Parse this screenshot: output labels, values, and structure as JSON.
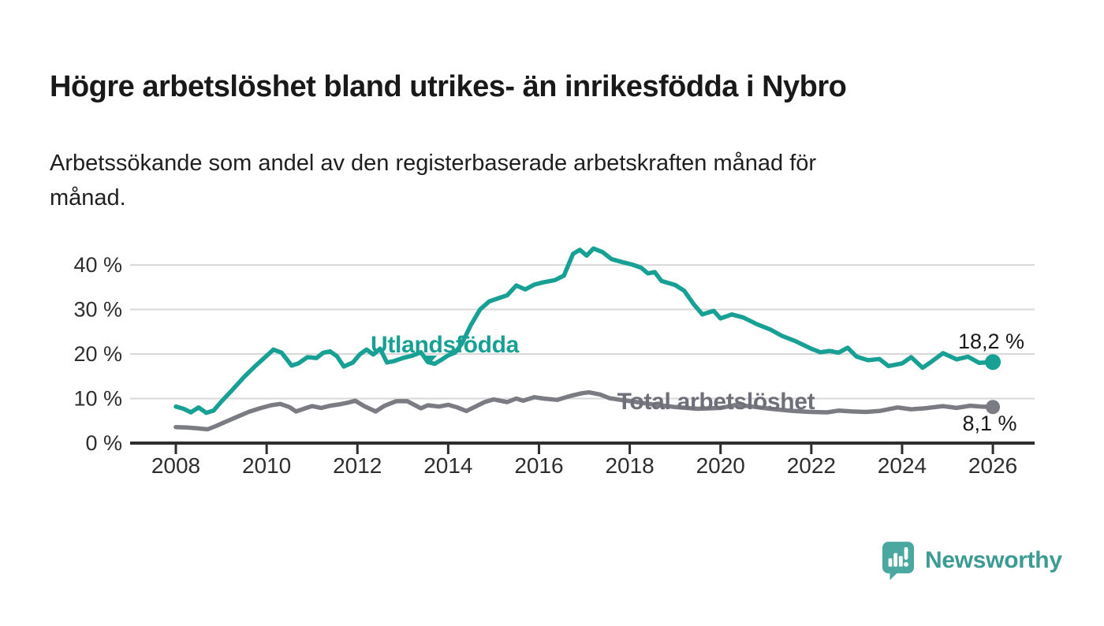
{
  "header": {
    "title": "Högre arbetslöshet bland utrikes- än inrikesfödda i Nybro",
    "subtitle": "Arbetssökande som andel av den registerbaserade arbetskraften månad för\nmånad."
  },
  "chart_data": {
    "type": "line",
    "title": "Högre arbetslöshet bland utrikes- än inrikesfödda i Nybro",
    "subtitle": "Arbetssökande som andel av den registerbaserade arbetskraften månad för månad.",
    "unit": "%",
    "grid": "horizontal",
    "x_axis": {
      "ticks": [
        2008,
        2010,
        2012,
        2014,
        2016,
        2018,
        2020,
        2022,
        2024,
        2026
      ],
      "tick_labels": [
        "2008",
        "2010",
        "2012",
        "2014",
        "2016",
        "2018",
        "2020",
        "2022",
        "2024",
        "2026"
      ],
      "range": [
        2007,
        2026.9
      ]
    },
    "y_axis": {
      "tick_values": [
        0,
        10,
        20,
        30,
        40
      ],
      "tick_labels": [
        "0 %",
        "10 %",
        "20 %",
        "30 %",
        "40 %"
      ],
      "range": [
        0,
        45.5
      ]
    },
    "colors": {
      "axis": "#2E2E2E",
      "gridline": "#D8D8D8",
      "background": "#FFFFFF"
    },
    "series": [
      {
        "name": "Utlandsfödda",
        "color": "#18A094",
        "end_value": 18.2,
        "end_label": "18,2 %",
        "points": [
          [
            2008.0,
            8.2
          ],
          [
            2008.17,
            7.7
          ],
          [
            2008.33,
            6.9
          ],
          [
            2008.5,
            8.0
          ],
          [
            2008.67,
            6.8
          ],
          [
            2008.83,
            7.3
          ],
          [
            2009.0,
            9.3
          ],
          [
            2009.25,
            12.0
          ],
          [
            2009.5,
            14.8
          ],
          [
            2009.75,
            17.3
          ],
          [
            2010.0,
            19.6
          ],
          [
            2010.15,
            21.0
          ],
          [
            2010.33,
            20.3
          ],
          [
            2010.55,
            17.4
          ],
          [
            2010.7,
            17.9
          ],
          [
            2010.9,
            19.3
          ],
          [
            2011.1,
            19.1
          ],
          [
            2011.25,
            20.3
          ],
          [
            2011.4,
            20.6
          ],
          [
            2011.55,
            19.5
          ],
          [
            2011.7,
            17.2
          ],
          [
            2011.9,
            18.1
          ],
          [
            2012.05,
            19.9
          ],
          [
            2012.2,
            21.0
          ],
          [
            2012.35,
            19.9
          ],
          [
            2012.5,
            21.2
          ],
          [
            2012.65,
            18.1
          ],
          [
            2012.8,
            18.4
          ],
          [
            2013.0,
            19.1
          ],
          [
            2013.2,
            19.6
          ],
          [
            2013.4,
            20.4
          ],
          [
            2013.55,
            18.2
          ],
          [
            2013.7,
            17.8
          ],
          [
            2013.85,
            18.7
          ],
          [
            2014.0,
            19.7
          ],
          [
            2014.15,
            20.3
          ],
          [
            2014.3,
            22.3
          ],
          [
            2014.5,
            26.5
          ],
          [
            2014.7,
            30.0
          ],
          [
            2014.9,
            31.8
          ],
          [
            2015.1,
            32.5
          ],
          [
            2015.3,
            33.2
          ],
          [
            2015.5,
            35.4
          ],
          [
            2015.7,
            34.5
          ],
          [
            2015.9,
            35.6
          ],
          [
            2016.1,
            36.1
          ],
          [
            2016.35,
            36.6
          ],
          [
            2016.55,
            37.6
          ],
          [
            2016.75,
            42.5
          ],
          [
            2016.9,
            43.4
          ],
          [
            2017.05,
            42.1
          ],
          [
            2017.2,
            43.7
          ],
          [
            2017.4,
            42.9
          ],
          [
            2017.6,
            41.3
          ],
          [
            2017.85,
            40.6
          ],
          [
            2018.05,
            40.1
          ],
          [
            2018.25,
            39.4
          ],
          [
            2018.4,
            38.1
          ],
          [
            2018.55,
            38.4
          ],
          [
            2018.7,
            36.4
          ],
          [
            2019.0,
            35.5
          ],
          [
            2019.2,
            34.2
          ],
          [
            2019.4,
            31.3
          ],
          [
            2019.6,
            28.9
          ],
          [
            2019.85,
            29.7
          ],
          [
            2020.0,
            28.0
          ],
          [
            2020.25,
            28.9
          ],
          [
            2020.5,
            28.2
          ],
          [
            2020.8,
            26.7
          ],
          [
            2021.1,
            25.5
          ],
          [
            2021.35,
            24.1
          ],
          [
            2021.65,
            22.9
          ],
          [
            2022.0,
            21.2
          ],
          [
            2022.2,
            20.4
          ],
          [
            2022.4,
            20.7
          ],
          [
            2022.6,
            20.3
          ],
          [
            2022.8,
            21.4
          ],
          [
            2023.0,
            19.4
          ],
          [
            2023.25,
            18.6
          ],
          [
            2023.5,
            18.9
          ],
          [
            2023.7,
            17.3
          ],
          [
            2024.0,
            17.9
          ],
          [
            2024.2,
            19.3
          ],
          [
            2024.45,
            16.9
          ],
          [
            2024.65,
            18.3
          ],
          [
            2024.9,
            20.2
          ],
          [
            2025.2,
            18.8
          ],
          [
            2025.45,
            19.4
          ],
          [
            2025.7,
            18.0
          ],
          [
            2026.0,
            18.2
          ]
        ]
      },
      {
        "name": "Total arbetslöshet",
        "color": "#7B7B83",
        "end_value": 8.1,
        "end_label": "8,1 %",
        "points": [
          [
            2008.0,
            3.6
          ],
          [
            2008.25,
            3.5
          ],
          [
            2008.5,
            3.3
          ],
          [
            2008.7,
            3.1
          ],
          [
            2008.9,
            3.9
          ],
          [
            2009.1,
            4.8
          ],
          [
            2009.35,
            5.9
          ],
          [
            2009.6,
            7.0
          ],
          [
            2009.85,
            7.8
          ],
          [
            2010.1,
            8.5
          ],
          [
            2010.3,
            8.8
          ],
          [
            2010.5,
            8.1
          ],
          [
            2010.65,
            7.1
          ],
          [
            2010.85,
            7.8
          ],
          [
            2011.0,
            8.3
          ],
          [
            2011.2,
            7.9
          ],
          [
            2011.4,
            8.4
          ],
          [
            2011.6,
            8.7
          ],
          [
            2011.8,
            9.1
          ],
          [
            2011.95,
            9.5
          ],
          [
            2012.15,
            8.3
          ],
          [
            2012.4,
            7.1
          ],
          [
            2012.6,
            8.4
          ],
          [
            2012.85,
            9.4
          ],
          [
            2013.1,
            9.4
          ],
          [
            2013.4,
            7.8
          ],
          [
            2013.55,
            8.5
          ],
          [
            2013.8,
            8.2
          ],
          [
            2014.0,
            8.6
          ],
          [
            2014.2,
            8.0
          ],
          [
            2014.4,
            7.2
          ],
          [
            2014.6,
            8.2
          ],
          [
            2014.8,
            9.2
          ],
          [
            2015.0,
            9.8
          ],
          [
            2015.3,
            9.2
          ],
          [
            2015.5,
            10.0
          ],
          [
            2015.65,
            9.5
          ],
          [
            2015.9,
            10.3
          ],
          [
            2016.1,
            10.0
          ],
          [
            2016.4,
            9.7
          ],
          [
            2016.7,
            10.6
          ],
          [
            2016.95,
            11.2
          ],
          [
            2017.1,
            11.4
          ],
          [
            2017.35,
            10.9
          ],
          [
            2017.55,
            10.1
          ],
          [
            2017.8,
            9.7
          ],
          [
            2018.1,
            9.3
          ],
          [
            2018.5,
            8.7
          ],
          [
            2019.0,
            8.1
          ],
          [
            2019.5,
            7.7
          ],
          [
            2020.0,
            7.9
          ],
          [
            2020.35,
            8.6
          ],
          [
            2020.7,
            8.2
          ],
          [
            2021.1,
            7.7
          ],
          [
            2021.6,
            7.2
          ],
          [
            2022.0,
            7.0
          ],
          [
            2022.35,
            6.9
          ],
          [
            2022.6,
            7.3
          ],
          [
            2022.9,
            7.1
          ],
          [
            2023.2,
            7.0
          ],
          [
            2023.5,
            7.2
          ],
          [
            2023.9,
            8.0
          ],
          [
            2024.2,
            7.6
          ],
          [
            2024.5,
            7.8
          ],
          [
            2024.9,
            8.3
          ],
          [
            2025.2,
            7.9
          ],
          [
            2025.5,
            8.4
          ],
          [
            2025.75,
            8.2
          ],
          [
            2026.0,
            8.1
          ]
        ]
      }
    ],
    "annotations": [
      {
        "text": "Utlandsfödda",
        "target_series": "Utlandsfödda"
      },
      {
        "text": "Total arbetslöshet",
        "target_series": "Total arbetslöshet"
      },
      {
        "text": "18,2 %",
        "target_series": "Utlandsfödda"
      },
      {
        "text": "8,1 %",
        "target_series": "Total arbetslöshet"
      }
    ]
  },
  "footer": {
    "brand": "Newsworthy",
    "brand_color": "#3C9B93",
    "icon": "newsworthy-bubble-barchart-icon"
  }
}
